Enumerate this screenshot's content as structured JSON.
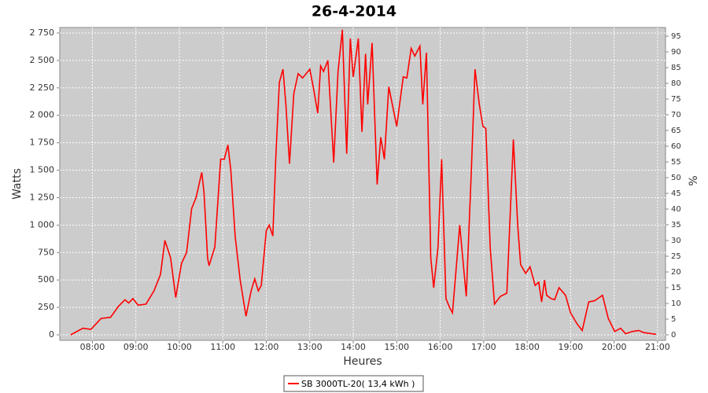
{
  "chart_data": {
    "type": "line",
    "title": "26-4-2014",
    "x_label": "Heures",
    "y_label": "Watts",
    "y2_label": "%",
    "grid": true,
    "legend": "bottom",
    "xlim": [
      435,
      1271
    ],
    "xticks": [
      {
        "value": 480,
        "label": "08:00"
      },
      {
        "value": 540,
        "label": "09:00"
      },
      {
        "value": 600,
        "label": "10:00"
      },
      {
        "value": 660,
        "label": "11:00"
      },
      {
        "value": 720,
        "label": "12:00"
      },
      {
        "value": 780,
        "label": "13:00"
      },
      {
        "value": 840,
        "label": "14:00"
      },
      {
        "value": 900,
        "label": "15:00"
      },
      {
        "value": 960,
        "label": "16:00"
      },
      {
        "value": 1020,
        "label": "17:00"
      },
      {
        "value": 1080,
        "label": "18:00"
      },
      {
        "value": 1140,
        "label": "19:00"
      },
      {
        "value": 1200,
        "label": "20:00"
      },
      {
        "value": 1260,
        "label": "21:00"
      }
    ],
    "ylim": [
      -50,
      2800
    ],
    "yticks": [
      0,
      250,
      500,
      750,
      {
        "value": 1000,
        "label": "1 000"
      },
      {
        "value": 1250,
        "label": "1 250"
      },
      {
        "value": 1500,
        "label": "1 500"
      },
      {
        "value": 1750,
        "label": "1 750"
      },
      {
        "value": 2000,
        "label": "2 000"
      },
      {
        "value": 2250,
        "label": "2 250"
      },
      {
        "value": 2500,
        "label": "2 500"
      },
      {
        "value": 2750,
        "label": "2 750"
      }
    ],
    "y2lim": [
      -1.75,
      97.75
    ],
    "y2ticks": [
      0,
      5,
      10,
      15,
      20,
      25,
      30,
      35,
      40,
      45,
      50,
      55,
      60,
      65,
      70,
      75,
      80,
      85,
      90,
      95
    ],
    "x": [
      450,
      467,
      478,
      492,
      505,
      516,
      525,
      530,
      536,
      543,
      554,
      565,
      574,
      580,
      588,
      595,
      603,
      610,
      617,
      623,
      631,
      634,
      639,
      641,
      649,
      657,
      662,
      667,
      671,
      677,
      684,
      692,
      699,
      704,
      709,
      713,
      720,
      724,
      729,
      733,
      738,
      743,
      747,
      752,
      758,
      764,
      770,
      780,
      785,
      791,
      795,
      799,
      805,
      813,
      819,
      825,
      831,
      836,
      840,
      847,
      852,
      857,
      860,
      866,
      873,
      878,
      883,
      889,
      900,
      909,
      914,
      920,
      925,
      932,
      936,
      941,
      947,
      951,
      957,
      962,
      968,
      973,
      977,
      987,
      996,
      1003,
      1008,
      1014,
      1019,
      1023,
      1029,
      1035,
      1043,
      1052,
      1061,
      1067,
      1071,
      1078,
      1084,
      1091,
      1096,
      1100,
      1104,
      1107,
      1113,
      1118,
      1124,
      1133,
      1140,
      1149,
      1156,
      1165,
      1173,
      1184,
      1192,
      1201,
      1209,
      1216,
      1225,
      1234,
      1241,
      1258
    ],
    "series": [
      {
        "name": "SB 3000TL-20( 13,4 kWh )",
        "color": "#ff0000",
        "values": [
          0,
          60,
          50,
          150,
          160,
          260,
          320,
          290,
          330,
          270,
          280,
          400,
          550,
          860,
          700,
          340,
          650,
          750,
          1150,
          1250,
          1480,
          1300,
          700,
          630,
          800,
          1600,
          1600,
          1730,
          1500,
          900,
          500,
          170,
          400,
          510,
          400,
          450,
          950,
          1000,
          900,
          1600,
          2300,
          2420,
          2100,
          1560,
          2200,
          2380,
          2340,
          2420,
          2250,
          2020,
          2450,
          2400,
          2500,
          1570,
          2400,
          2780,
          1650,
          2700,
          2350,
          2700,
          1850,
          2560,
          2100,
          2660,
          1370,
          1800,
          1600,
          2260,
          1900,
          2350,
          2340,
          2610,
          2540,
          2630,
          2100,
          2570,
          700,
          430,
          800,
          1600,
          330,
          250,
          200,
          1000,
          350,
          1500,
          2420,
          2100,
          1900,
          1880,
          800,
          280,
          350,
          380,
          1780,
          1000,
          640,
          560,
          620,
          450,
          480,
          300,
          500,
          360,
          330,
          320,
          430,
          360,
          200,
          100,
          40,
          300,
          310,
          360,
          150,
          30,
          60,
          10,
          30,
          40,
          20,
          5
        ]
      }
    ]
  }
}
